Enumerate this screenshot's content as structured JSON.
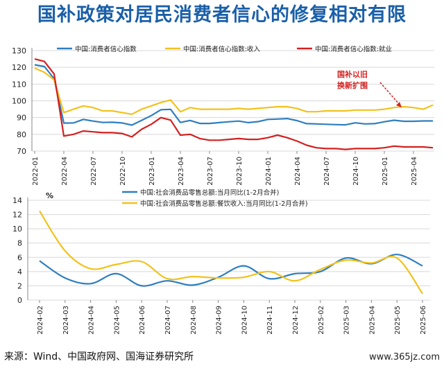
{
  "title": "国补政策对居民消费者信心的修复相对有限",
  "source": "来源：Wind、中国政府网、国海证券研究所",
  "watermark": "www.365jz.com",
  "colors": {
    "blue": "#2e7ebf",
    "yellow": "#f2c21b",
    "red": "#d41f1f",
    "grid": "#d8d8d8"
  },
  "chart_data": [
    {
      "type": "line",
      "x": [
        "2022-01",
        "2022-02",
        "2022-03",
        "2022-04",
        "2022-05",
        "2022-06",
        "2022-07",
        "2022-08",
        "2022-09",
        "2022-10",
        "2022-11",
        "2022-12",
        "2023-01",
        "2023-02",
        "2023-03",
        "2023-04",
        "2023-05",
        "2023-06",
        "2023-07",
        "2023-08",
        "2023-09",
        "2023-10",
        "2023-11",
        "2023-12",
        "2024-01",
        "2024-02",
        "2024-03",
        "2024-04",
        "2024-05",
        "2024-06",
        "2024-07",
        "2024-08",
        "2024-09",
        "2024-10",
        "2024-11",
        "2024-12",
        "2025-01",
        "2025-02",
        "2025-03",
        "2025-04",
        "2025-05",
        "2025-06"
      ],
      "xticks": [
        "2022-01",
        "2022-04",
        "2022-07",
        "2022-10",
        "2023-01",
        "2023-04",
        "2023-07",
        "2023-10",
        "2024-01",
        "2024-04",
        "2024-07",
        "2024-10",
        "2025-01",
        "2025-04"
      ],
      "yticks": [
        "70",
        "80",
        "90",
        "100",
        "110",
        "120",
        "130"
      ],
      "ylim": [
        70,
        130
      ],
      "series": [
        {
          "name": "中国:消费者信心指数",
          "color": "#2e7ebf",
          "values": [
            121.5,
            120.5,
            113.2,
            86.7,
            86.8,
            88.9,
            87.9,
            87.1,
            87.2,
            86.8,
            85.5,
            88.3,
            91.2,
            94.7,
            94.9,
            87.1,
            88.3,
            86.5,
            86.5,
            87.0,
            87.5,
            87.9,
            87.0,
            87.6,
            88.9,
            89.1,
            89.4,
            88.2,
            86.4,
            86.2,
            86.0,
            85.8,
            85.7,
            86.9,
            86.2,
            86.4,
            87.5,
            88.4,
            87.8,
            87.8,
            88.0,
            88.0
          ]
        },
        {
          "name": "中国:消费者信心指数:收入",
          "color": "#f2c21b",
          "values": [
            119.5,
            117.0,
            112.5,
            93.0,
            95.0,
            97.0,
            96.0,
            94.0,
            94.0,
            93.0,
            92.0,
            95.0,
            97.0,
            99.0,
            100.5,
            93.5,
            96.0,
            95.0,
            95.0,
            95.0,
            95.0,
            95.5,
            95.0,
            95.5,
            96.0,
            96.5,
            96.5,
            95.5,
            93.5,
            93.5,
            94.0,
            94.0,
            94.0,
            94.5,
            94.5,
            94.5,
            95.0,
            96.0,
            96.5,
            96.0,
            95.0,
            97.5
          ]
        },
        {
          "name": "中国:消费者信心指数:就业",
          "color": "#d41f1f",
          "values": [
            125.0,
            123.5,
            116.0,
            79.0,
            80.0,
            82.0,
            81.5,
            81.0,
            81.0,
            80.5,
            78.5,
            83.0,
            86.0,
            90.0,
            88.5,
            79.5,
            80.0,
            77.5,
            76.5,
            76.5,
            77.0,
            77.5,
            77.0,
            77.0,
            78.0,
            79.5,
            78.0,
            76.0,
            73.5,
            72.0,
            71.5,
            71.5,
            71.0,
            71.5,
            71.5,
            71.5,
            72.0,
            73.0,
            72.5,
            72.5,
            72.5,
            72.0
          ]
        }
      ],
      "annotation": {
        "line1": "国补以旧",
        "line2": "换新扩围"
      }
    },
    {
      "type": "line",
      "unit": "%",
      "x": [
        "2024-02",
        "2024-03",
        "2024-04",
        "2024-05",
        "2024-06",
        "2024-07",
        "2024-08",
        "2024-09",
        "2024-10",
        "2024-11",
        "2024-12",
        "2025-02",
        "2025-03",
        "2025-04",
        "2025-05",
        "2025-06"
      ],
      "yticks": [
        "0",
        "2",
        "4",
        "6",
        "8",
        "10",
        "12",
        "14"
      ],
      "ylim": [
        0,
        14
      ],
      "series": [
        {
          "name": "中国:社会消费品零售总额:当月同比(1-2月合并)",
          "color": "#2e7ebf",
          "values": [
            5.5,
            3.1,
            2.3,
            3.7,
            2.0,
            2.7,
            2.1,
            3.2,
            4.8,
            3.0,
            3.7,
            4.0,
            5.9,
            5.1,
            6.4,
            4.8
          ]
        },
        {
          "name": "中国:社会消费品零售总额:餐饮收入:当月同比(1-2月合并)",
          "color": "#f2c21b",
          "values": [
            12.5,
            6.9,
            4.4,
            5.0,
            5.4,
            3.0,
            3.3,
            3.1,
            3.2,
            4.0,
            2.7,
            4.3,
            5.6,
            5.2,
            5.9,
            0.9
          ]
        }
      ]
    }
  ]
}
